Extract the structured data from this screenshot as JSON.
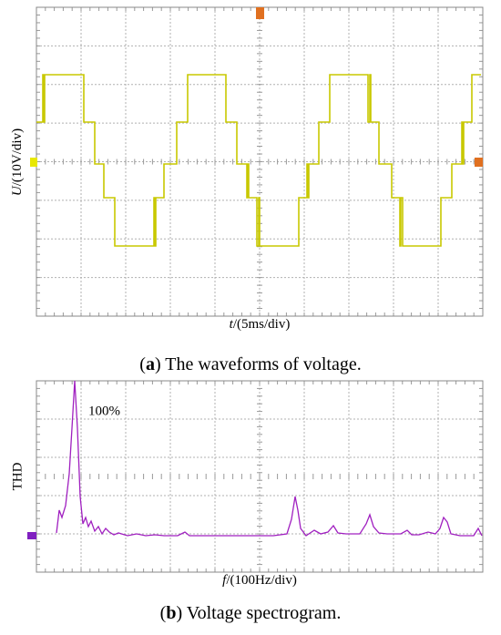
{
  "panels": [
    {
      "y_label": [
        "U",
        "/(10V/div)"
      ],
      "x_label": [
        "t",
        "/(5ms/div)"
      ],
      "caption": [
        "(",
        "a",
        ") The waveforms of voltage."
      ]
    },
    {
      "y_label": "THD",
      "annotation": "100%",
      "x_label": [
        "f",
        "/(100Hz/div)"
      ],
      "caption": [
        "(",
        "b",
        ") Voltage spectrogram."
      ]
    }
  ]
}
